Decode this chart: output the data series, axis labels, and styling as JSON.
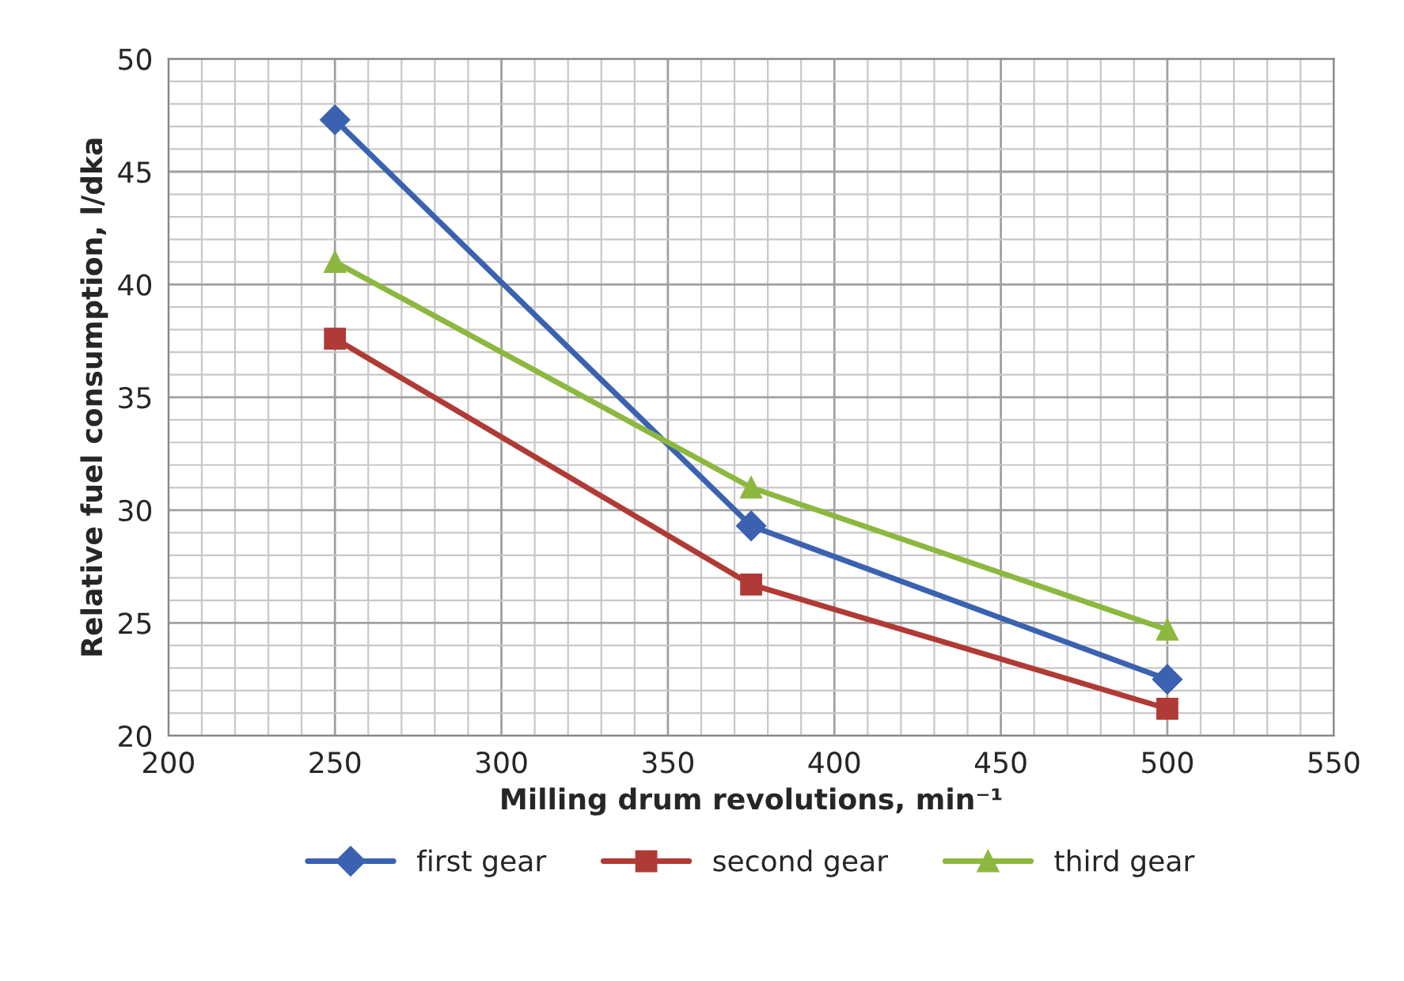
{
  "chart_data": {
    "type": "line",
    "xlabel": "Milling drum revolutions, min⁻¹",
    "ylabel": "Relative fuel consumption, l/dka",
    "x": [
      250,
      375,
      500
    ],
    "series": [
      {
        "name": "first gear",
        "color": "#3a62b0",
        "values": [
          47.3,
          29.3,
          22.5
        ],
        "marker": "diamond"
      },
      {
        "name": "second gear",
        "color": "#b03a35",
        "values": [
          37.6,
          26.7,
          21.2
        ],
        "marker": "square"
      },
      {
        "name": "third gear",
        "color": "#8db840",
        "values": [
          41.0,
          31.0,
          24.7
        ],
        "marker": "triangle"
      }
    ],
    "xlim": [
      200,
      550
    ],
    "xticks": [
      200,
      250,
      300,
      350,
      400,
      450,
      500,
      550
    ],
    "ylim": [
      20,
      50
    ],
    "yticks": [
      20,
      25,
      30,
      35,
      40,
      45,
      50
    ],
    "grid": true,
    "legend": "bottom",
    "line_style": "solid"
  }
}
